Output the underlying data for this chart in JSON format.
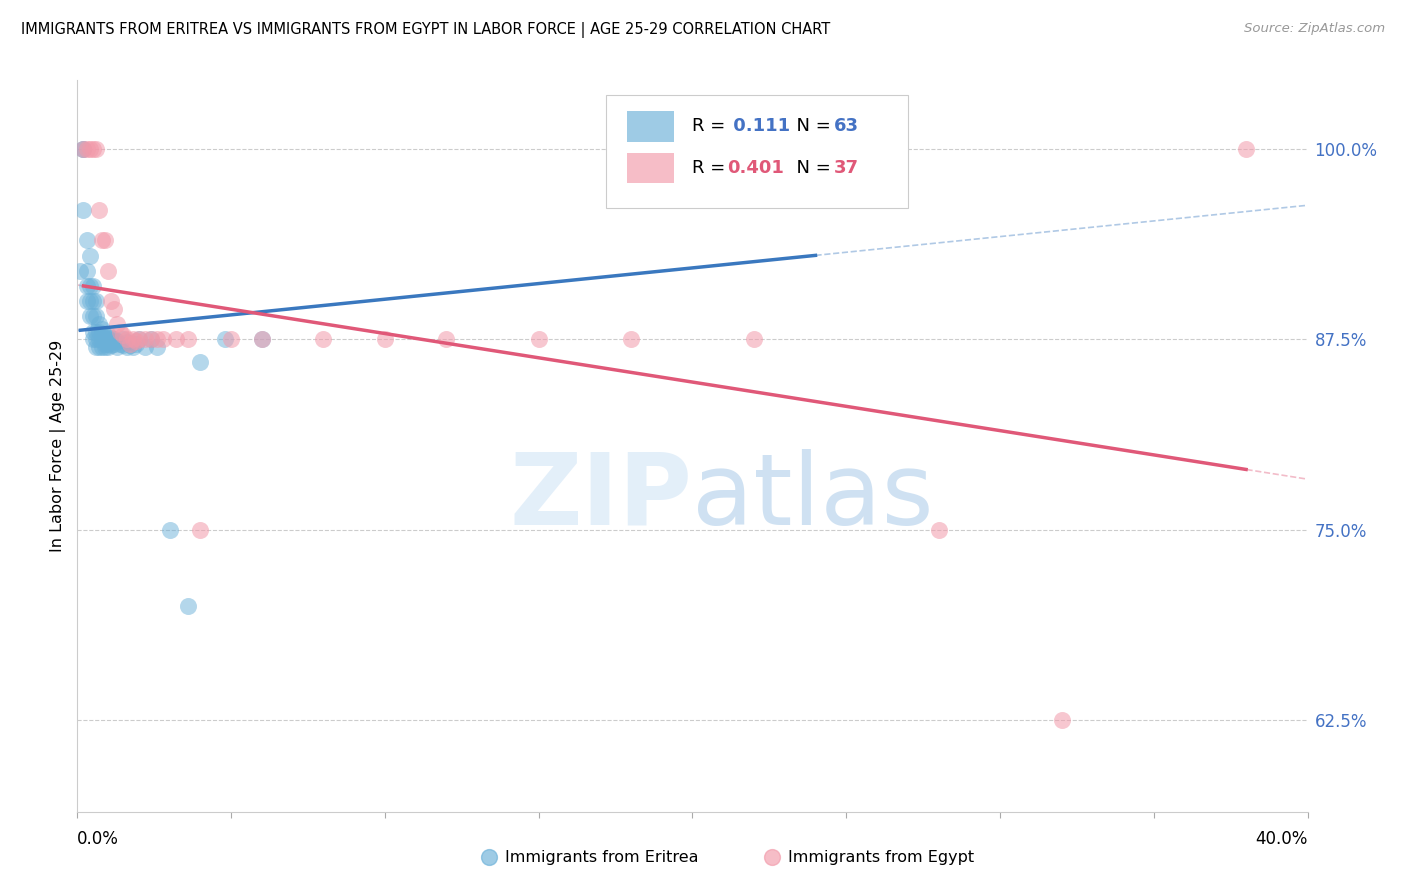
{
  "title": "IMMIGRANTS FROM ERITREA VS IMMIGRANTS FROM EGYPT IN LABOR FORCE | AGE 25-29 CORRELATION CHART",
  "source": "Source: ZipAtlas.com",
  "ylabel": "In Labor Force | Age 25-29",
  "ytick_labels": [
    "100.0%",
    "87.5%",
    "75.0%",
    "62.5%"
  ],
  "ytick_values": [
    1.0,
    0.875,
    0.75,
    0.625
  ],
  "xmin": 0.0,
  "xmax": 0.4,
  "ymin": 0.565,
  "ymax": 1.045,
  "eritrea_R": "0.111",
  "eritrea_N": "63",
  "egypt_R": "0.401",
  "egypt_N": "37",
  "eritrea_color": "#6ab0d8",
  "egypt_color": "#f29aaa",
  "eritrea_line_color": "#3a78bf",
  "egypt_line_color": "#e05878",
  "eritrea_x": [
    0.001,
    0.002,
    0.002,
    0.002,
    0.003,
    0.003,
    0.003,
    0.003,
    0.004,
    0.004,
    0.004,
    0.004,
    0.005,
    0.005,
    0.005,
    0.005,
    0.005,
    0.006,
    0.006,
    0.006,
    0.006,
    0.006,
    0.007,
    0.007,
    0.007,
    0.007,
    0.008,
    0.008,
    0.008,
    0.008,
    0.009,
    0.009,
    0.009,
    0.009,
    0.01,
    0.01,
    0.01,
    0.01,
    0.011,
    0.011,
    0.011,
    0.012,
    0.012,
    0.013,
    0.013,
    0.014,
    0.015,
    0.015,
    0.016,
    0.016,
    0.017,
    0.018,
    0.019,
    0.02,
    0.022,
    0.024,
    0.026,
    0.03,
    0.036,
    0.04,
    0.048,
    0.06,
    0.24
  ],
  "eritrea_y": [
    0.92,
    1.0,
    1.0,
    0.96,
    0.94,
    0.92,
    0.91,
    0.9,
    0.93,
    0.91,
    0.9,
    0.89,
    0.91,
    0.9,
    0.89,
    0.88,
    0.875,
    0.9,
    0.89,
    0.88,
    0.875,
    0.87,
    0.885,
    0.88,
    0.875,
    0.87,
    0.882,
    0.878,
    0.875,
    0.87,
    0.878,
    0.875,
    0.872,
    0.87,
    0.878,
    0.875,
    0.872,
    0.87,
    0.876,
    0.874,
    0.871,
    0.875,
    0.872,
    0.874,
    0.87,
    0.872,
    0.875,
    0.871,
    0.873,
    0.87,
    0.871,
    0.87,
    0.872,
    0.875,
    0.87,
    0.875,
    0.87,
    0.75,
    0.7,
    0.86,
    0.875,
    0.875,
    1.0
  ],
  "egypt_x": [
    0.002,
    0.003,
    0.004,
    0.005,
    0.006,
    0.007,
    0.008,
    0.009,
    0.01,
    0.011,
    0.012,
    0.013,
    0.014,
    0.015,
    0.016,
    0.017,
    0.018,
    0.019,
    0.02,
    0.022,
    0.024,
    0.026,
    0.028,
    0.032,
    0.036,
    0.04,
    0.05,
    0.06,
    0.08,
    0.1,
    0.12,
    0.15,
    0.18,
    0.22,
    0.28,
    0.32,
    0.38
  ],
  "egypt_y": [
    1.0,
    1.0,
    1.0,
    1.0,
    1.0,
    0.96,
    0.94,
    0.94,
    0.92,
    0.9,
    0.895,
    0.885,
    0.88,
    0.878,
    0.875,
    0.872,
    0.875,
    0.874,
    0.875,
    0.875,
    0.875,
    0.875,
    0.875,
    0.875,
    0.875,
    0.75,
    0.875,
    0.875,
    0.875,
    0.875,
    0.875,
    0.875,
    0.875,
    0.875,
    0.75,
    0.625,
    1.0
  ]
}
